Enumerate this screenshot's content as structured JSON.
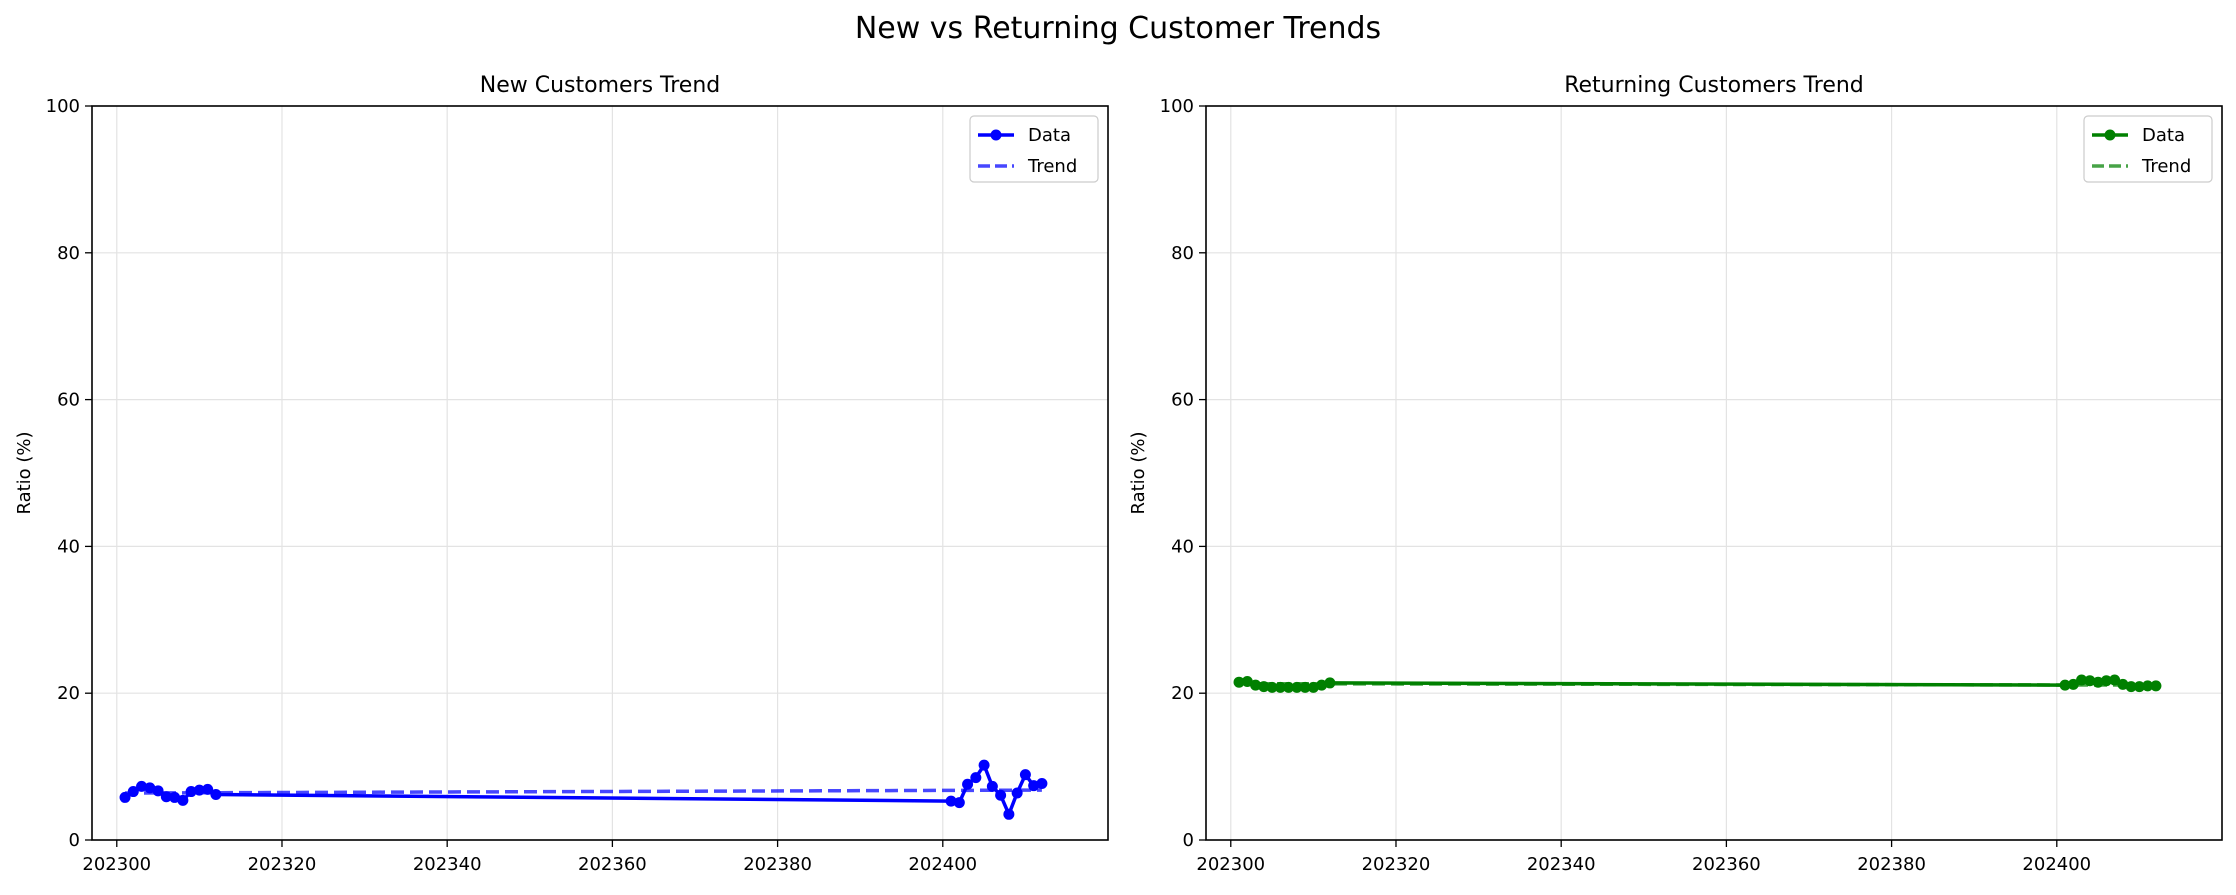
{
  "suptitle": "New vs Returning Customer Trends",
  "chart_data": [
    {
      "type": "line",
      "title": "New Customers Trend",
      "xlabel": "",
      "ylabel": "Ratio (%)",
      "xlim": [
        202297,
        202420
      ],
      "ylim": [
        0,
        100
      ],
      "xticks": [
        202300,
        202320,
        202340,
        202360,
        202380,
        202400
      ],
      "yticks": [
        0,
        20,
        40,
        60,
        80,
        100
      ],
      "grid": true,
      "legend_position": "top-right",
      "color": "#0000ff",
      "series": [
        {
          "name": "Data",
          "style": "solid-marker",
          "x": [
            202301,
            202302,
            202303,
            202304,
            202305,
            202306,
            202307,
            202308,
            202309,
            202310,
            202311,
            202312,
            202401,
            202402,
            202403,
            202404,
            202405,
            202406,
            202407,
            202408,
            202409,
            202410,
            202411,
            202412
          ],
          "y": [
            5.8,
            6.6,
            7.3,
            7.1,
            6.7,
            5.9,
            5.8,
            5.4,
            6.6,
            6.8,
            6.9,
            6.2,
            5.3,
            5.1,
            7.6,
            8.5,
            10.2,
            7.3,
            6.1,
            3.5,
            6.4,
            8.9,
            7.4,
            7.7
          ]
        },
        {
          "name": "Trend",
          "style": "dashed",
          "x": [
            202301,
            202412
          ],
          "y": [
            6.4,
            6.8
          ]
        }
      ]
    },
    {
      "type": "line",
      "title": "Returning Customers Trend",
      "xlabel": "",
      "ylabel": "Ratio (%)",
      "xlim": [
        202297,
        202420
      ],
      "ylim": [
        0,
        100
      ],
      "xticks": [
        202300,
        202320,
        202340,
        202360,
        202380,
        202400
      ],
      "yticks": [
        0,
        20,
        40,
        60,
        80,
        100
      ],
      "grid": true,
      "legend_position": "top-right",
      "color": "#008000",
      "series": [
        {
          "name": "Data",
          "style": "solid-marker",
          "x": [
            202301,
            202302,
            202303,
            202304,
            202305,
            202306,
            202307,
            202308,
            202309,
            202310,
            202311,
            202312,
            202401,
            202402,
            202403,
            202404,
            202405,
            202406,
            202407,
            202408,
            202409,
            202410,
            202411,
            202412
          ],
          "y": [
            21.5,
            21.6,
            21.1,
            20.9,
            20.8,
            20.8,
            20.8,
            20.8,
            20.8,
            20.8,
            21.1,
            21.4,
            21.1,
            21.2,
            21.8,
            21.7,
            21.5,
            21.7,
            21.8,
            21.2,
            20.9,
            20.9,
            21.0,
            21.0
          ]
        },
        {
          "name": "Trend",
          "style": "dashed",
          "x": [
            202301,
            202412
          ],
          "y": [
            21.3,
            21.1
          ]
        }
      ]
    }
  ]
}
